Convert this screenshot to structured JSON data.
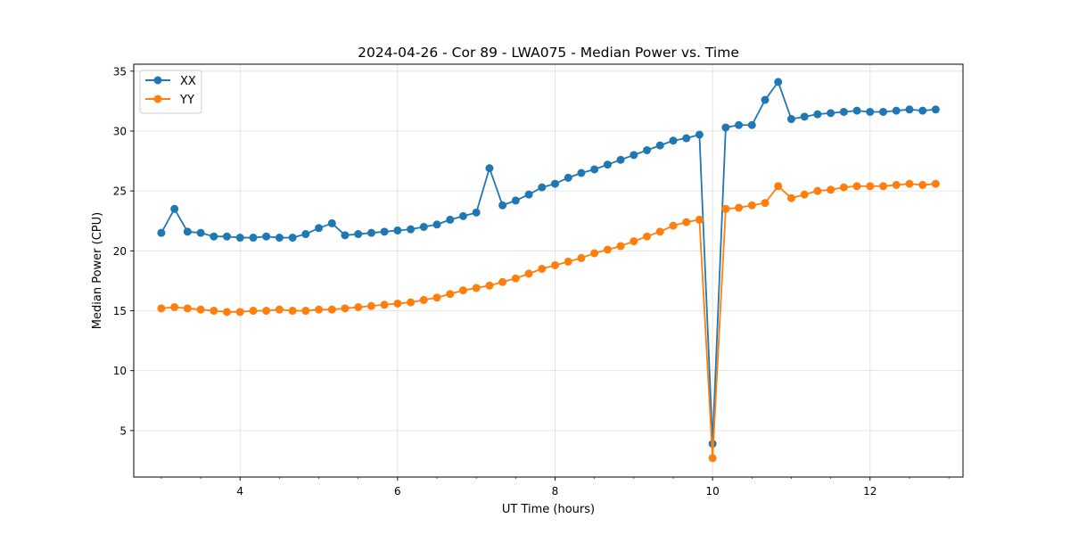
{
  "chart_data": {
    "type": "line",
    "title": "2024-04-26 - Cor 89 - LWA075 - Median Power vs. Time",
    "xlabel": "UT Time (hours)",
    "ylabel": "Median Power (CPU)",
    "xlim": [
      2.65,
      13.18
    ],
    "ylim": [
      1.12,
      35.58
    ],
    "xticks": [
      4,
      6,
      8,
      10,
      12
    ],
    "xtick_labels": [
      "4",
      "6",
      "8",
      "10",
      "12"
    ],
    "x_minor_step": 0.5,
    "yticks": [
      5,
      10,
      15,
      20,
      25,
      30,
      35
    ],
    "ytick_labels": [
      "5",
      "10",
      "15",
      "20",
      "25",
      "30",
      "35"
    ],
    "grid": true,
    "legend_position": "top-left",
    "x": [
      3.0,
      3.167,
      3.333,
      3.5,
      3.667,
      3.833,
      4.0,
      4.167,
      4.333,
      4.5,
      4.667,
      4.833,
      5.0,
      5.167,
      5.333,
      5.5,
      5.667,
      5.833,
      6.0,
      6.167,
      6.333,
      6.5,
      6.667,
      6.833,
      7.0,
      7.167,
      7.333,
      7.5,
      7.667,
      7.833,
      8.0,
      8.167,
      8.333,
      8.5,
      8.667,
      8.833,
      9.0,
      9.167,
      9.333,
      9.5,
      9.667,
      9.833,
      10.0,
      10.167,
      10.333,
      10.5,
      10.667,
      10.833,
      11.0,
      11.167,
      11.333,
      11.5,
      11.667,
      11.833,
      12.0,
      12.167,
      12.333,
      12.5,
      12.667,
      12.833
    ],
    "series": [
      {
        "name": "XX",
        "color": "#1f77b4",
        "values": [
          21.5,
          23.5,
          21.6,
          21.5,
          21.2,
          21.2,
          21.1,
          21.1,
          21.2,
          21.1,
          21.1,
          21.4,
          21.9,
          22.3,
          21.3,
          21.4,
          21.5,
          21.6,
          21.7,
          21.8,
          22.0,
          22.2,
          22.6,
          22.9,
          23.2,
          26.9,
          23.8,
          24.2,
          24.7,
          25.3,
          25.6,
          26.1,
          26.5,
          26.8,
          27.2,
          27.6,
          28.0,
          28.4,
          28.8,
          29.2,
          29.4,
          29.7,
          3.9,
          30.3,
          30.5,
          30.5,
          32.6,
          34.1,
          31.0,
          31.2,
          31.4,
          31.5,
          31.6,
          31.7,
          31.6,
          31.6,
          31.7,
          31.8,
          31.7,
          31.8
        ]
      },
      {
        "name": "YY",
        "color": "#ff7f0e",
        "values": [
          15.2,
          15.3,
          15.2,
          15.1,
          15.0,
          14.9,
          14.9,
          15.0,
          15.0,
          15.1,
          15.0,
          15.0,
          15.1,
          15.1,
          15.2,
          15.3,
          15.4,
          15.5,
          15.6,
          15.7,
          15.9,
          16.1,
          16.4,
          16.7,
          16.9,
          17.1,
          17.4,
          17.7,
          18.1,
          18.5,
          18.8,
          19.1,
          19.4,
          19.8,
          20.1,
          20.4,
          20.8,
          21.2,
          21.6,
          22.1,
          22.4,
          22.6,
          2.7,
          23.5,
          23.6,
          23.8,
          24.0,
          25.4,
          24.4,
          24.7,
          25.0,
          25.1,
          25.3,
          25.4,
          25.4,
          25.4,
          25.5,
          25.6,
          25.5,
          25.6
        ]
      }
    ]
  }
}
